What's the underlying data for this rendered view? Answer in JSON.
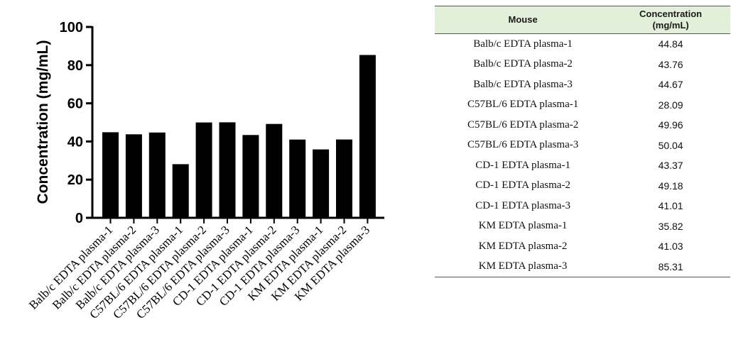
{
  "chart_data": {
    "type": "bar",
    "title": "",
    "xlabel": "",
    "ylabel": "Concentration (mg/mL)",
    "ylim": [
      0,
      100
    ],
    "yticks": [
      "0",
      "20",
      "40",
      "60",
      "80",
      "100"
    ],
    "categories": [
      "Balb/c EDTA plasma-1",
      "Balb/c EDTA plasma-2",
      "Balb/c EDTA plasma-3",
      "C57BL/6 EDTA plasma-1",
      "C57BL/6 EDTA plasma-2",
      "C57BL/6 EDTA plasma-3",
      "CD-1 EDTA plasma-1",
      "CD-1 EDTA plasma-2",
      "CD-1 EDTA plasma-3",
      "KM EDTA plasma-1",
      "KM EDTA plasma-2",
      "KM EDTA plasma-3"
    ],
    "values": [
      44.84,
      43.76,
      44.67,
      28.09,
      49.96,
      50.04,
      43.37,
      49.18,
      41.01,
      35.82,
      41.03,
      85.31
    ],
    "bar_color": "#000000",
    "grid": false
  },
  "table": {
    "header_mouse": "Mouse",
    "header_conc_line1": "Concentration",
    "header_conc_line2": "(mg/mL)",
    "header_bg": "#e2f0d9",
    "rows": [
      {
        "mouse": "Balb/c EDTA plasma-1",
        "conc": "44.84"
      },
      {
        "mouse": "Balb/c EDTA plasma-2",
        "conc": "43.76"
      },
      {
        "mouse": "Balb/c EDTA plasma-3",
        "conc": "44.67"
      },
      {
        "mouse": "C57BL/6 EDTA plasma-1",
        "conc": "28.09"
      },
      {
        "mouse": "C57BL/6 EDTA plasma-2",
        "conc": "49.96"
      },
      {
        "mouse": "C57BL/6 EDTA plasma-3",
        "conc": "50.04"
      },
      {
        "mouse": "CD-1 EDTA plasma-1",
        "conc": "43.37"
      },
      {
        "mouse": "CD-1 EDTA plasma-2",
        "conc": "49.18"
      },
      {
        "mouse": "CD-1 EDTA plasma-3",
        "conc": "41.01"
      },
      {
        "mouse": "KM EDTA plasma-1",
        "conc": "35.82"
      },
      {
        "mouse": "KM EDTA plasma-2",
        "conc": "41.03"
      },
      {
        "mouse": "KM EDTA plasma-3",
        "conc": "85.31"
      }
    ]
  }
}
